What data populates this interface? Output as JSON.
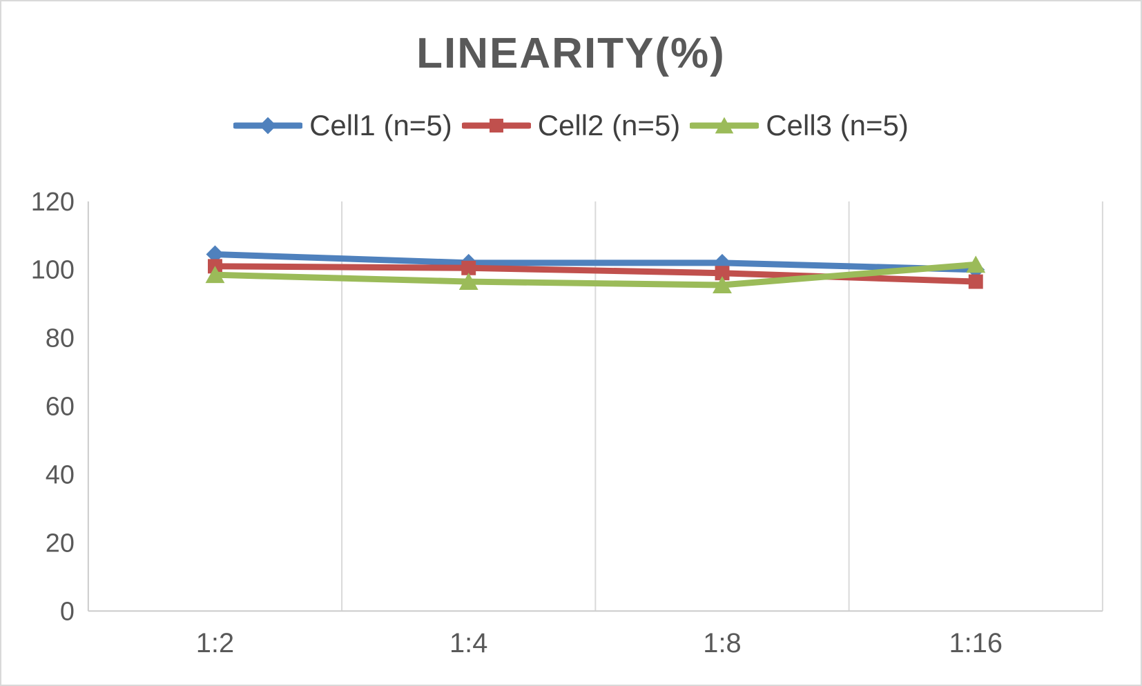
{
  "window": {
    "background": "#FFFFFF",
    "border_color": "#D9D9D9"
  },
  "chart_data": {
    "type": "line",
    "title": "LINEARITY(%)",
    "categories": [
      "1:2",
      "1:4",
      "1:8",
      "1:16"
    ],
    "series": [
      {
        "name": "Cell1 (n=5)",
        "marker": "diamond",
        "color": "#4F81BD",
        "values": [
          104.5,
          102,
          102,
          100
        ]
      },
      {
        "name": "Cell2 (n=5)",
        "marker": "square",
        "color": "#C0504D",
        "values": [
          101,
          100.5,
          99,
          96.5
        ]
      },
      {
        "name": "Cell3 (n=5)",
        "marker": "triangle",
        "color": "#9BBB59",
        "values": [
          98.5,
          96.5,
          95.5,
          101.5
        ]
      }
    ],
    "xlabel": "",
    "ylabel": "",
    "ylim": [
      0,
      120
    ],
    "y_ticks": [
      0,
      20,
      40,
      60,
      80,
      100,
      120
    ],
    "grid": "vertical-only",
    "legend_position": "top-center"
  },
  "styles": {
    "title_color": "#595959",
    "legend_text_color": "#404040",
    "axis_text_color": "#595959",
    "grid_color": "#D9D9D9",
    "axis_line_color": "#CBCBCB",
    "line_width": 9
  }
}
